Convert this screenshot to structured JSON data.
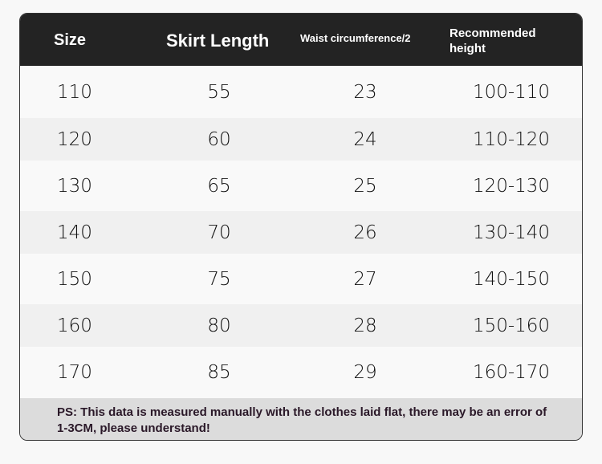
{
  "table": {
    "headers": [
      "Size",
      "Skirt Length",
      "Waist circumference/2",
      "Recommended height"
    ],
    "rows": [
      [
        "110",
        "55",
        "23",
        "100-110"
      ],
      [
        "120",
        "60",
        "24",
        "110-120"
      ],
      [
        "130",
        "65",
        "25",
        "120-130"
      ],
      [
        "140",
        "70",
        "26",
        "130-140"
      ],
      [
        "150",
        "75",
        "27",
        "140-150"
      ],
      [
        "160",
        "80",
        "28",
        "150-160"
      ],
      [
        "170",
        "85",
        "29",
        "160-170"
      ]
    ]
  },
  "footer_note": "PS: This data is measured manually with the clothes laid flat, there may be an error of 1-3CM, please understand!",
  "colors": {
    "header_bg": "#232323",
    "row_light": "#f9f9f9",
    "row_alt": "#f0f0f0",
    "footer_bg": "#dcdcdc"
  }
}
